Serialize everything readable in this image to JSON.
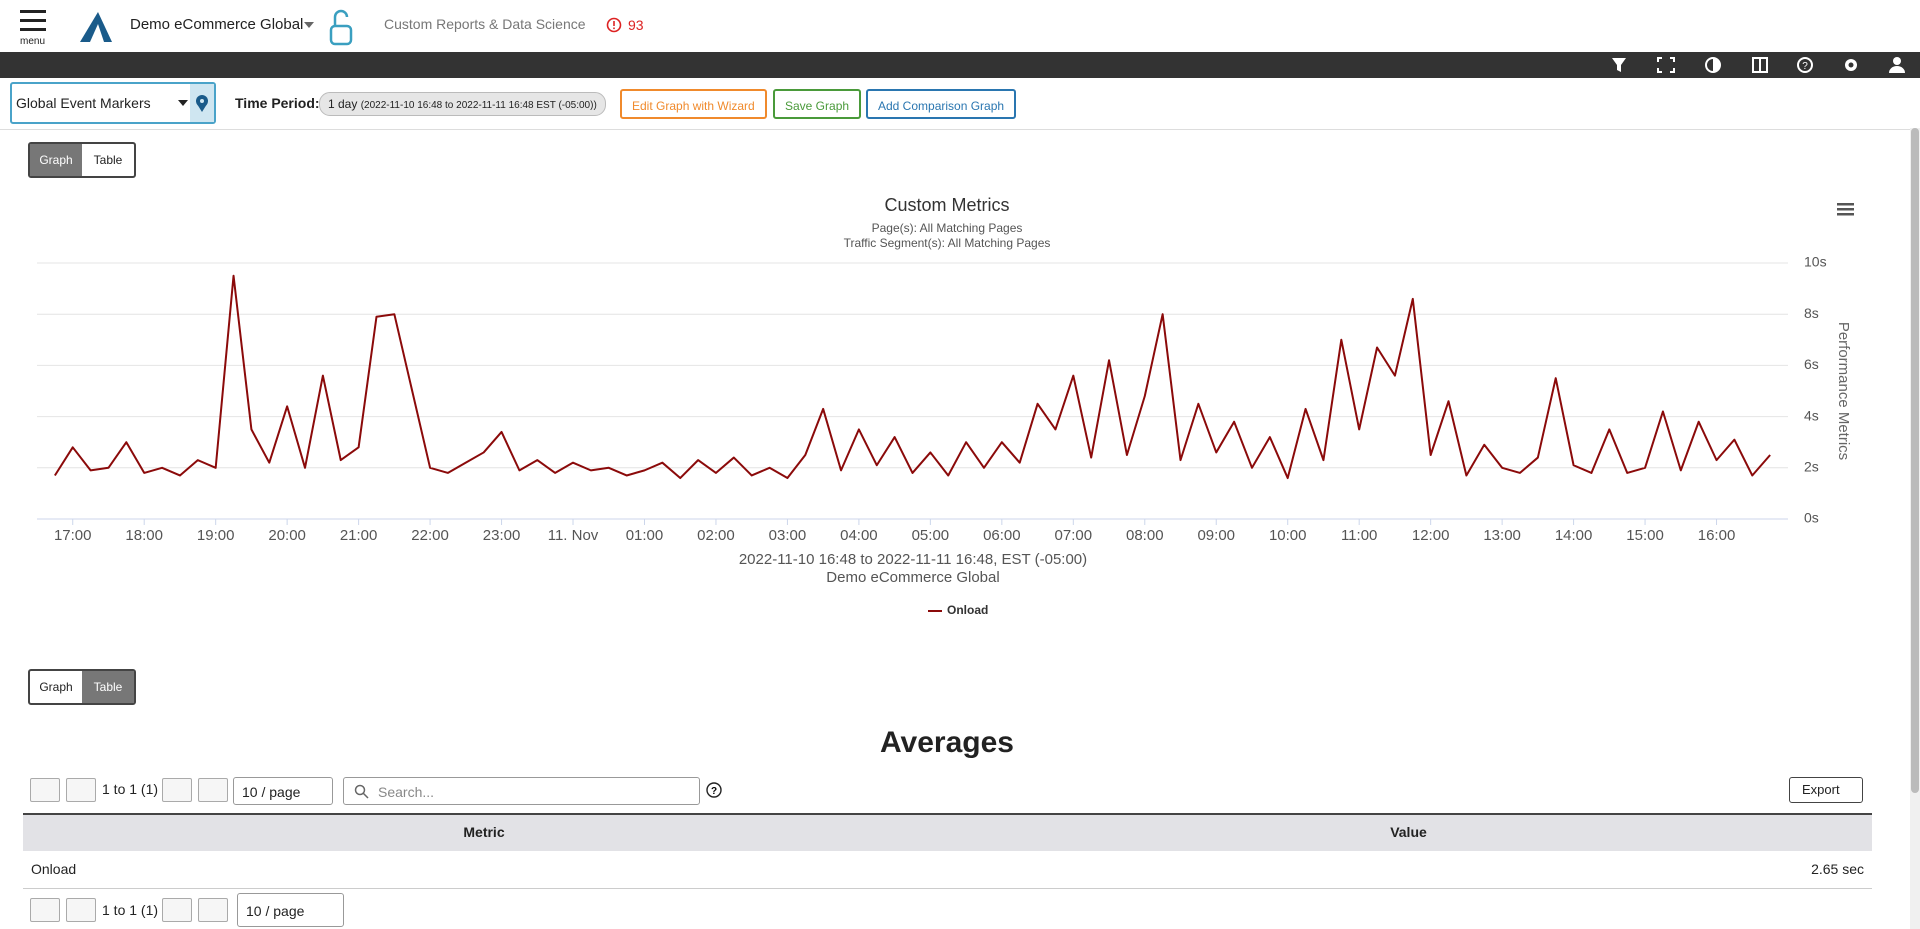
{
  "header": {
    "menu": "menu",
    "account": "Demo eCommerce Global",
    "app_title": "Custom Reports & Data Science",
    "alert_count": "93"
  },
  "toolbar": {
    "event_markers": "Global Event Markers",
    "time_period_label": "Time Period:",
    "time_period_value": "1 day",
    "time_period_range": "(2022-11-10 16:48 to 2022-11-11 16:48 EST (-05:00))",
    "buttons": [
      "Edit Graph with Wizard",
      "Save Graph",
      "Add Comparison Graph"
    ]
  },
  "view_toggle": [
    "Graph",
    "Table"
  ],
  "chart_data": {
    "type": "line",
    "title": "Custom Metrics",
    "subtitles": [
      "Page(s): All Matching Pages",
      "Traffic Segment(s): All Matching Pages"
    ],
    "x_axis_label": [
      "2022-11-10 16:48 to 2022-11-11 16:48, EST (-05:00)",
      "Demo eCommerce Global"
    ],
    "y_axis_label": "Performance Metrics",
    "x": [
      16.75,
      17,
      17.25,
      17.5,
      17.75,
      18,
      18.25,
      18.5,
      18.75,
      19,
      19.25,
      19.5,
      19.75,
      20,
      20.25,
      20.5,
      20.75,
      21,
      21.25,
      21.5,
      21.75,
      22,
      22.25,
      22.5,
      22.75,
      23,
      23.25,
      23.5,
      23.75,
      24,
      24.25,
      24.5,
      24.75,
      25,
      25.25,
      25.5,
      25.75,
      26,
      26.25,
      26.5,
      26.75,
      27,
      27.25,
      27.5,
      27.75,
      28,
      28.25,
      28.5,
      28.75,
      29,
      29.25,
      29.5,
      29.75,
      30,
      30.25,
      30.5,
      30.75,
      31,
      31.25,
      31.5,
      31.75,
      32,
      32.25,
      32.5,
      32.75,
      33,
      33.25,
      33.5,
      33.75,
      34,
      34.25,
      34.5,
      34.75,
      35,
      35.25,
      35.5,
      35.75,
      36,
      36.25,
      36.5,
      36.75,
      37,
      37.25,
      37.5,
      37.75,
      38,
      38.25,
      38.5,
      38.75,
      39,
      39.25,
      39.5,
      39.75,
      40,
      40.25,
      40.5,
      40.75
    ],
    "series": [
      {
        "name": "Onload",
        "color": "#8b0a0a",
        "values": [
          1.7,
          2.8,
          1.9,
          2.0,
          3.0,
          1.8,
          2.0,
          1.7,
          2.3,
          2.0,
          9.5,
          3.5,
          2.2,
          4.4,
          2.0,
          5.6,
          2.3,
          2.8,
          7.9,
          8.0,
          5.0,
          2.0,
          1.8,
          2.2,
          2.6,
          3.4,
          1.9,
          2.3,
          1.8,
          2.2,
          1.9,
          2.0,
          1.7,
          1.9,
          2.2,
          1.6,
          2.3,
          1.8,
          2.4,
          1.7,
          2.0,
          1.6,
          2.5,
          4.3,
          1.9,
          3.5,
          2.1,
          3.2,
          1.8,
          2.6,
          1.7,
          3.0,
          2.0,
          3.0,
          2.2,
          4.5,
          3.5,
          5.6,
          2.4,
          6.2,
          2.5,
          4.8,
          8.0,
          2.3,
          4.5,
          2.6,
          3.8,
          2.0,
          3.2,
          1.6,
          4.3,
          2.3,
          7.0,
          3.5,
          6.7,
          5.6,
          8.6,
          2.5,
          4.6,
          1.7,
          2.9,
          2.0,
          1.8,
          2.4,
          5.5,
          2.1,
          1.8,
          3.5,
          1.8,
          2.0,
          4.2,
          1.9,
          3.8,
          2.3,
          3.1,
          1.7,
          2.5
        ]
      }
    ],
    "xlim": [
      16.5,
      41
    ],
    "xticks": [
      {
        "value": 17,
        "label": "17:00"
      },
      {
        "value": 18,
        "label": "18:00"
      },
      {
        "value": 19,
        "label": "19:00"
      },
      {
        "value": 20,
        "label": "20:00"
      },
      {
        "value": 21,
        "label": "21:00"
      },
      {
        "value": 22,
        "label": "22:00"
      },
      {
        "value": 23,
        "label": "23:00"
      },
      {
        "value": 24,
        "label": "11. Nov"
      },
      {
        "value": 25,
        "label": "01:00"
      },
      {
        "value": 26,
        "label": "02:00"
      },
      {
        "value": 27,
        "label": "03:00"
      },
      {
        "value": 28,
        "label": "04:00"
      },
      {
        "value": 29,
        "label": "05:00"
      },
      {
        "value": 30,
        "label": "06:00"
      },
      {
        "value": 31,
        "label": "07:00"
      },
      {
        "value": 32,
        "label": "08:00"
      },
      {
        "value": 33,
        "label": "09:00"
      },
      {
        "value": 34,
        "label": "10:00"
      },
      {
        "value": 35,
        "label": "11:00"
      },
      {
        "value": 36,
        "label": "12:00"
      },
      {
        "value": 37,
        "label": "13:00"
      },
      {
        "value": 38,
        "label": "14:00"
      },
      {
        "value": 39,
        "label": "15:00"
      },
      {
        "value": 40,
        "label": "16:00"
      }
    ],
    "ylim": [
      0,
      10
    ],
    "yticks": [
      {
        "value": 0,
        "label": "0s"
      },
      {
        "value": 2,
        "label": "2s"
      },
      {
        "value": 4,
        "label": "4s"
      },
      {
        "value": 6,
        "label": "6s"
      },
      {
        "value": 8,
        "label": "8s"
      },
      {
        "value": 10,
        "label": "10s"
      }
    ],
    "grid": true
  },
  "table": {
    "title": "Averages",
    "pager": "1 to 1 (1)",
    "per_page": "10 / page",
    "search_placeholder": "Search...",
    "export": "Export",
    "columns": [
      "Metric",
      "Value"
    ],
    "rows": [
      [
        "Onload",
        "2.65 sec"
      ]
    ]
  }
}
